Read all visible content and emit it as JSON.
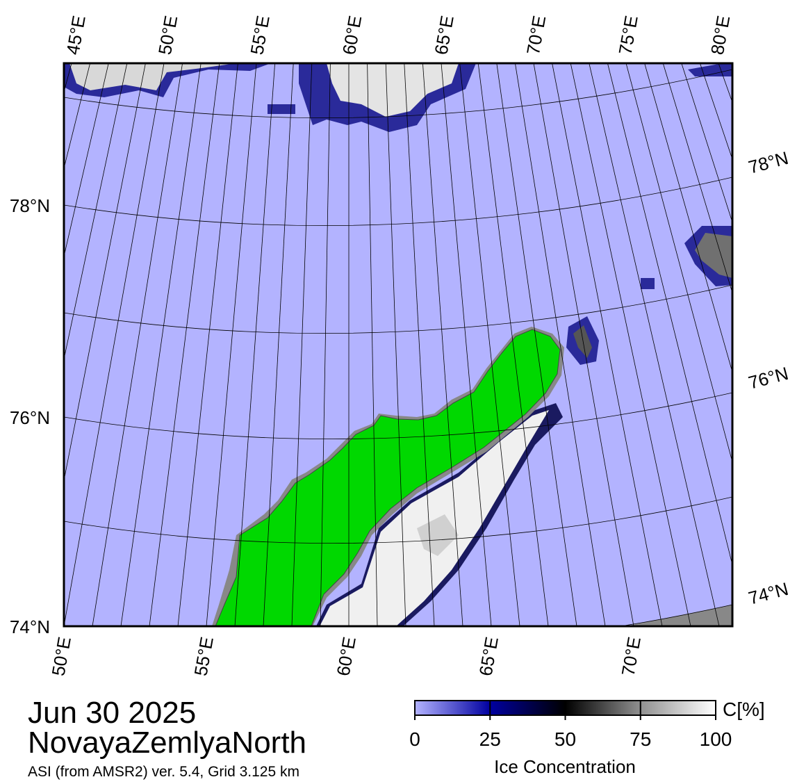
{
  "map": {
    "top_lon_labels": [
      "45°E",
      "50°E",
      "55°E",
      "60°E",
      "65°E",
      "70°E",
      "75°E",
      "80°E"
    ],
    "bottom_lon_labels": [
      "50°E",
      "55°E",
      "60°E",
      "65°E",
      "70°E"
    ],
    "left_lat_labels": [
      "78°N",
      "76°N",
      "74°N"
    ],
    "right_lat_labels": [
      "78°N",
      "76°N",
      "74°N"
    ]
  },
  "header": {
    "date": "Jun 30 2025",
    "region": "NovayaZemlyaNorth",
    "source": "ASI (from AMSR2) ver. 5.4,  Grid 3.125 km"
  },
  "colorbar": {
    "lim": [
      0,
      100
    ],
    "ticks": [
      0,
      25,
      50,
      75,
      100
    ],
    "unit_label": "C[%]",
    "title": "Ice Concentration"
  }
}
